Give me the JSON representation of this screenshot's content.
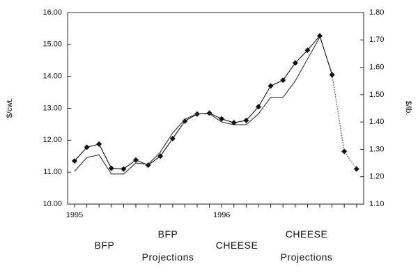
{
  "chart_data": {
    "type": "line",
    "y_label": "$/cwt.",
    "y2_label": "$/lb.",
    "categories": [
      "1995",
      null,
      null,
      null,
      null,
      null,
      null,
      null,
      null,
      null,
      null,
      null,
      "1996",
      null,
      null,
      null,
      null,
      null,
      null,
      null,
      null,
      null,
      null,
      null
    ],
    "ylim": [
      10,
      16
    ],
    "yticks": [
      {
        "value": 10,
        "label": "10.00"
      },
      {
        "value": 11,
        "label": "11.00"
      },
      {
        "value": 12,
        "label": "12.00"
      },
      {
        "value": 13,
        "label": "13.00"
      },
      {
        "value": 14,
        "label": "14.00"
      },
      {
        "value": 15,
        "label": "15.00"
      },
      {
        "value": 16,
        "label": "16.00"
      }
    ],
    "y2lim": [
      1.1,
      1.8
    ],
    "y2ticks": [
      {
        "value": 1.1,
        "label": "1.10"
      },
      {
        "value": 1.2,
        "label": "1.20"
      },
      {
        "value": 1.3,
        "label": "1.30"
      },
      {
        "value": 1.4,
        "label": "1.40"
      },
      {
        "value": 1.5,
        "label": "1.50"
      },
      {
        "value": 1.6,
        "label": "1.60"
      },
      {
        "value": 1.7,
        "label": "1.70"
      },
      {
        "value": 1.8,
        "label": "1.80"
      }
    ],
    "series": [
      {
        "name": "BFP",
        "color": "#111111",
        "style": "solid",
        "markers": true,
        "values": [
          11.35,
          11.78,
          11.88,
          11.12,
          11.1,
          11.38,
          11.22,
          11.5,
          12.05,
          12.6,
          12.82,
          12.85,
          12.67,
          12.55,
          12.62,
          13.05,
          13.7,
          13.88,
          14.42,
          14.82,
          15.27,
          14.05,
          null,
          null
        ]
      },
      {
        "name": "BFP Projections",
        "color": "#111111",
        "style": "dotted",
        "markers": true,
        "values": [
          null,
          null,
          null,
          null,
          null,
          null,
          null,
          null,
          null,
          null,
          null,
          null,
          null,
          null,
          null,
          null,
          null,
          null,
          null,
          null,
          null,
          14.05,
          11.65,
          11.1
        ]
      },
      {
        "name": "CHEESE",
        "color": "#333333",
        "style": "solid",
        "markers": false,
        "axis": "y2",
        "values": [
          1.22,
          1.27,
          1.28,
          1.21,
          1.21,
          1.25,
          1.245,
          1.29,
          1.36,
          1.41,
          1.43,
          1.43,
          1.4,
          1.39,
          1.39,
          1.43,
          1.49,
          1.49,
          1.55,
          1.63,
          1.71,
          null,
          null,
          null
        ]
      },
      {
        "name": "CHEESE Projections",
        "color": "#333333",
        "style": "dotted",
        "markers": false,
        "axis": "y2",
        "values": [
          null,
          null,
          null,
          null,
          null,
          null,
          null,
          null,
          null,
          null,
          null,
          null,
          null,
          null,
          null,
          null,
          null,
          null,
          null,
          null,
          1.71,
          1.58,
          null,
          null
        ]
      }
    ]
  }
}
